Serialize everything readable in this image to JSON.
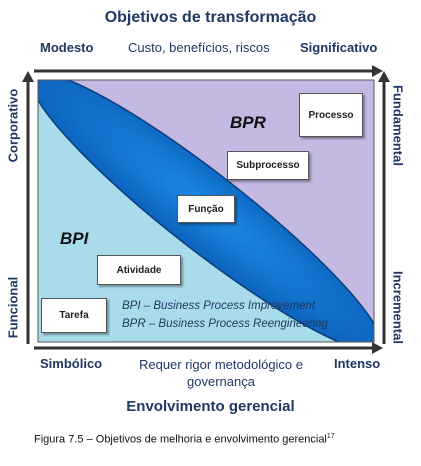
{
  "title_top": "Objetivos de transformação",
  "title_bottom": "Envolvimento gerencial",
  "top_axis": {
    "left": "Modesto",
    "middle": "Custo, benefícios, riscos",
    "right": "Significativo"
  },
  "bottom_axis": {
    "left": "Simbólico",
    "middle": "Requer rigor metodológico e governança",
    "right": "Intenso"
  },
  "left_axis": {
    "top": "Corporativo",
    "bottom": "Funcional"
  },
  "right_axis": {
    "top": "Fundamental",
    "bottom": "Incremental"
  },
  "regions": {
    "bpr": "BPR",
    "bpi": "BPI"
  },
  "boxes": {
    "processo": "Processo",
    "subprocesso": "Subprocesso",
    "funcao": "Função",
    "atividade": "Atividade",
    "tarefa": "Tarefa"
  },
  "legend": {
    "bpi": "BPI – Business Process Improvement",
    "bpr": "BPR – Business Process Reengineering"
  },
  "caption": {
    "text": "Figura 7.5 – Objetivos de melhoria e envolvimento gerencial",
    "superscript": "17"
  },
  "colors": {
    "text": "#1f3864",
    "bpr_region": "#c3b9e2",
    "bpi_region": "#a8dcea",
    "ellipse": "#0e77d6",
    "axis": "#333333"
  }
}
